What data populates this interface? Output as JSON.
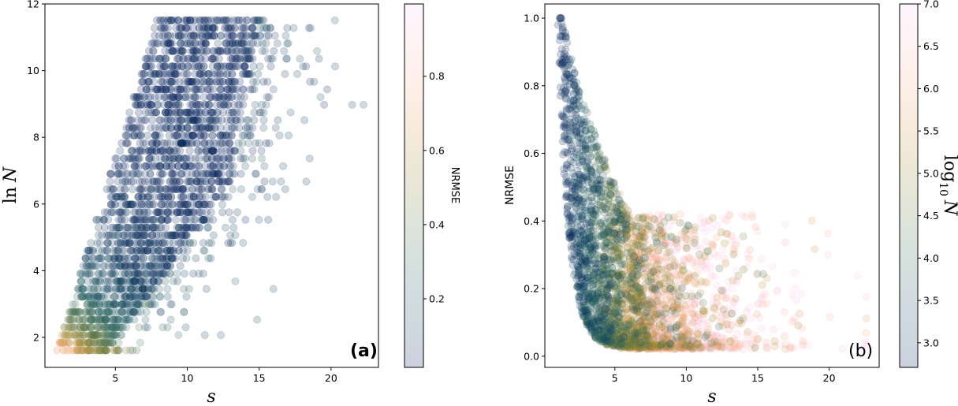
{
  "colormap": {
    "name": "batlow",
    "stops": [
      "#011959",
      "#0f3d5e",
      "#1c5a62",
      "#3f6f55",
      "#6f7d3e",
      "#a38a33",
      "#d99a4e",
      "#fdb08f",
      "#fbc1c8",
      "#faccfa"
    ]
  },
  "chart_data": [
    {
      "type": "scatter",
      "panel_label": "(a)",
      "xlabel": "s",
      "ylabel_prefix": "ln",
      "ylabel_var": "N",
      "xlim": [
        0.1,
        23.3
      ],
      "ylim": [
        1.1,
        12.0
      ],
      "xticks": [
        5,
        10,
        15,
        20
      ],
      "yticks": [
        2,
        4,
        6,
        8,
        10,
        12
      ],
      "grid": false,
      "color_variable": "NRMSE",
      "colorbar": {
        "label": "NRMSE",
        "range": [
          0.015,
          0.995
        ],
        "ticks": [
          0.2,
          0.4,
          0.6,
          0.8
        ]
      },
      "marker_alpha": 0.2,
      "lnN_levels": {
        "start": 1.61,
        "step": 0.2302,
        "count": 44
      },
      "row_s_min": "approx 0.7*lnN - 0.2 (min 0.9)",
      "row_s_max_dense": "approx min(4.4 + 1.75*(lnN-1.6), 13.5 + 0.4*(lnN-8))",
      "max_s_outlier": 22.6,
      "points_per_row": 60
    },
    {
      "type": "scatter",
      "panel_label": "(b)",
      "xlabel": "s",
      "ylabel": "NRMSE",
      "xlim": [
        0.1,
        23.5
      ],
      "ylim": [
        -0.033,
        1.042
      ],
      "xticks": [
        5,
        10,
        15,
        20
      ],
      "yticks": [
        0.0,
        0.2,
        0.4,
        0.6,
        0.8,
        1.0
      ],
      "ytick_labels": [
        "0.0",
        "0.2",
        "0.4",
        "0.6",
        "0.8",
        "1.0"
      ],
      "grid": false,
      "color_variable": "log10 N",
      "colorbar": {
        "label_prefix": "log",
        "label_sub": "10",
        "label_var": "N",
        "range": [
          2.71,
          7.0
        ],
        "ticks": [
          3.0,
          3.5,
          4.0,
          4.5,
          5.0,
          5.5,
          6.0,
          6.5,
          7.0
        ],
        "tick_labels": [
          "3.0",
          "3.5",
          "4.0",
          "4.5",
          "5.0",
          "5.5",
          "6.0",
          "6.5",
          "7.0"
        ]
      },
      "marker_alpha": 0.2,
      "nrmse_max": 1.0,
      "nrmse_floor": 0.02,
      "s_range": [
        1.0,
        22.6
      ],
      "point_count": 3000
    }
  ]
}
